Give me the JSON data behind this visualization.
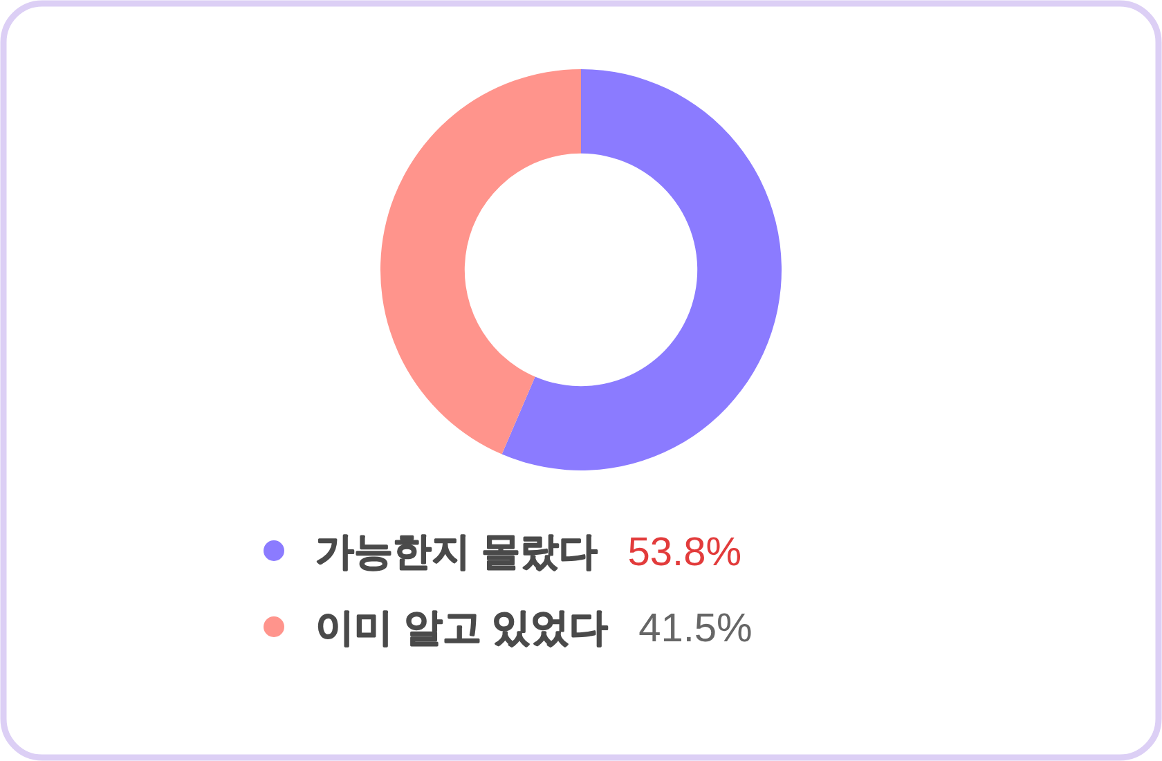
{
  "chart_data": {
    "type": "donut",
    "categories": [
      "가능한지 몰랐다",
      "이미 알고 있었다"
    ],
    "values": [
      53.8,
      41.5
    ],
    "colors": [
      "#8b7bff",
      "#ff948c"
    ],
    "value_labels": [
      "53.8%",
      "41.5%"
    ],
    "legend": "bottom"
  }
}
